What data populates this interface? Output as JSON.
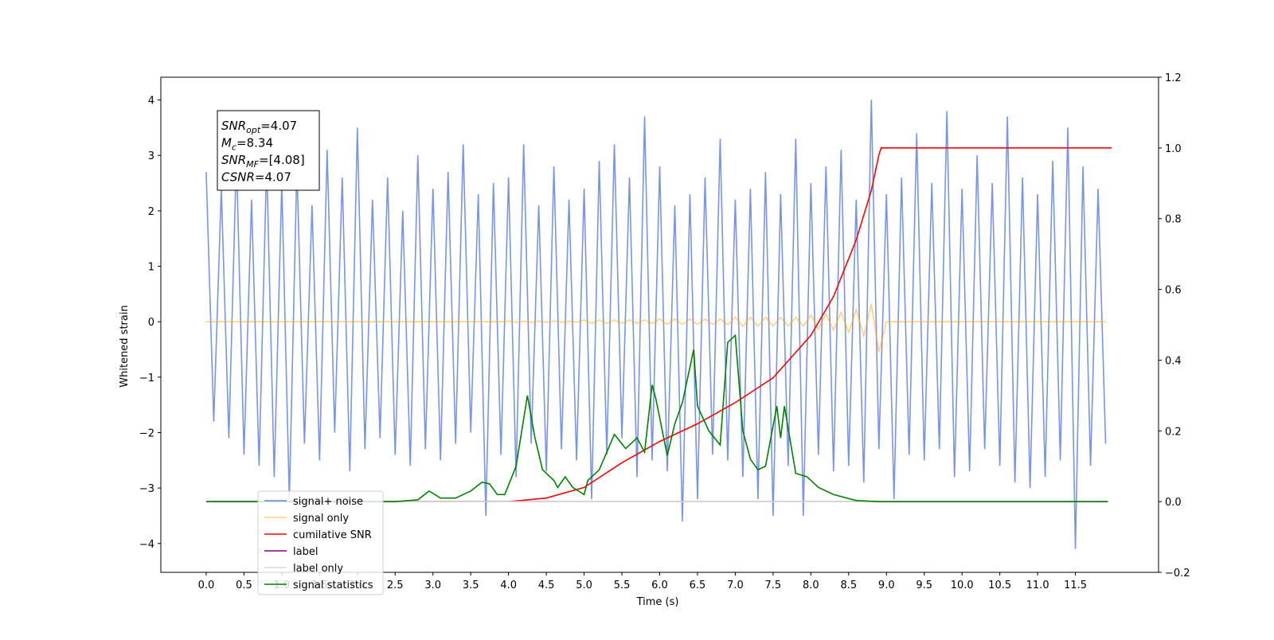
{
  "chart_data": {
    "type": "line",
    "xlabel": "Time (s)",
    "ylabel": "Whitened strain",
    "xlim": [
      -0.6,
      12.6
    ],
    "ylim": [
      -4.52,
      4.41
    ],
    "y2lim": [
      -0.2,
      1.2
    ],
    "xticks": [
      {
        "value": 0,
        "label": "0.0"
      },
      {
        "value": 0.5,
        "label": "0.5"
      },
      {
        "value": 1,
        "label": "1.0"
      },
      {
        "value": 1.5,
        "label": "1.5"
      },
      {
        "value": 2,
        "label": "2.0"
      },
      {
        "value": 2.5,
        "label": "2.5"
      },
      {
        "value": 3,
        "label": "3.0"
      },
      {
        "value": 3.5,
        "label": "3.5"
      },
      {
        "value": 4,
        "label": "4.0"
      },
      {
        "value": 4.5,
        "label": "4.5"
      },
      {
        "value": 5,
        "label": "5.0"
      },
      {
        "value": 5.5,
        "label": "5.5"
      },
      {
        "value": 6,
        "label": "6.0"
      },
      {
        "value": 6.5,
        "label": "6.5"
      },
      {
        "value": 7,
        "label": "7.0"
      },
      {
        "value": 7.5,
        "label": "7.5"
      },
      {
        "value": 8,
        "label": "8.0"
      },
      {
        "value": 8.5,
        "label": "8.5"
      },
      {
        "value": 9,
        "label": "9.0"
      },
      {
        "value": 9.5,
        "label": "9.5"
      },
      {
        "value": 10,
        "label": "10.0"
      },
      {
        "value": 10.5,
        "label": "10.5"
      },
      {
        "value": 11,
        "label": "11.0"
      },
      {
        "value": 11.5,
        "label": "11.5"
      }
    ],
    "yticks": [
      {
        "value": -4,
        "label": "−4"
      },
      {
        "value": -3,
        "label": "−3"
      },
      {
        "value": -2,
        "label": "−2"
      },
      {
        "value": -1,
        "label": "−1"
      },
      0,
      1,
      2,
      3,
      4
    ],
    "y2ticks": [
      {
        "value": -0.2,
        "label": "−0.2"
      },
      {
        "value": 0,
        "label": "0.0"
      },
      0.2,
      0.4,
      0.6,
      0.8,
      {
        "value": 1,
        "label": "1.0"
      },
      1.2
    ],
    "annotation": [
      {
        "base": "SNR",
        "sub": "opt",
        "rest": "=4.07"
      },
      {
        "base": "M",
        "sub": "c",
        "rest": "=8.34"
      },
      {
        "base": "SNR",
        "sub": "MF",
        "rest": "=[4.08]"
      },
      {
        "base": "CSNR",
        "rest": "=4.07"
      }
    ],
    "legend": "lower left",
    "series": [
      {
        "name": "signal+ noise",
        "color": "#6a87e6",
        "axis": "y",
        "x": [
          0,
          0.1,
          0.2,
          0.3,
          0.4,
          0.5,
          0.6,
          0.7,
          0.8,
          0.9,
          1,
          1.1,
          1.2,
          1.3,
          1.4,
          1.5,
          1.6,
          1.7,
          1.8,
          1.9,
          2,
          2.1,
          2.2,
          2.3,
          2.4,
          2.5,
          2.6,
          2.7,
          2.8,
          2.9,
          3,
          3.1,
          3.2,
          3.3,
          3.4,
          3.5,
          3.6,
          3.7,
          3.8,
          3.9,
          4,
          4.1,
          4.2,
          4.3,
          4.4,
          4.5,
          4.6,
          4.7,
          4.8,
          4.9,
          5,
          5.1,
          5.2,
          5.3,
          5.4,
          5.5,
          5.6,
          5.7,
          5.8,
          5.9,
          6,
          6.1,
          6.2,
          6.3,
          6.4,
          6.5,
          6.6,
          6.7,
          6.8,
          6.9,
          7,
          7.1,
          7.2,
          7.3,
          7.4,
          7.5,
          7.6,
          7.7,
          7.8,
          7.9,
          8,
          8.1,
          8.2,
          8.3,
          8.4,
          8.5,
          8.6,
          8.7,
          8.8,
          8.9,
          9,
          9.1,
          9.2,
          9.3,
          9.4,
          9.5,
          9.6,
          9.7,
          9.8,
          9.9,
          10,
          10.1,
          10.2,
          10.3,
          10.4,
          10.5,
          10.6,
          10.7,
          10.8,
          10.9,
          11,
          11.1,
          11.2,
          11.3,
          11.4,
          11.5,
          11.6,
          11.7,
          11.8,
          11.9
        ],
        "values": [
          2.7,
          -1.8,
          2.4,
          -2.1,
          3.0,
          -2.4,
          2.2,
          -2.6,
          2.9,
          -2.8,
          2.5,
          -3.2,
          2.8,
          -2.2,
          2.1,
          -2.5,
          3.1,
          -2.0,
          2.6,
          -2.7,
          3.5,
          -2.3,
          2.2,
          -2.1,
          2.6,
          -2.4,
          2.0,
          -2.6,
          3.0,
          -2.3,
          2.4,
          -2.5,
          2.7,
          -2.2,
          3.2,
          -2.0,
          2.3,
          -3.5,
          2.5,
          -2.4,
          2.6,
          -2.8,
          3.2,
          -2.2,
          2.1,
          -2.7,
          2.8,
          -2.3,
          2.2,
          -2.5,
          2.4,
          -3.2,
          2.9,
          -2.4,
          3.2,
          -2.1,
          2.6,
          -2.8,
          3.7,
          -2.5,
          2.8,
          -2.7,
          2.1,
          -3.6,
          2.3,
          -3.2,
          2.6,
          -2.4,
          3.3,
          -2.5,
          2.2,
          -2.8,
          2.4,
          -3.2,
          2.7,
          -3.5,
          2.3,
          -2.6,
          3.3,
          -3.5,
          2.5,
          -2.4,
          2.8,
          -2.7,
          3.1,
          -2.6,
          2.2,
          -2.9,
          4.0,
          -2.3,
          2.3,
          -3.2,
          2.6,
          -2.4,
          3.4,
          -2.5,
          2.5,
          -2.3,
          3.8,
          -2.8,
          2.4,
          -2.7,
          3.0,
          -2.3,
          2.5,
          -2.6,
          3.7,
          -2.9,
          2.6,
          -3.0,
          2.3,
          -2.8,
          2.9,
          -2.5,
          3.5,
          -4.1,
          2.8,
          -2.6,
          2.4,
          -2.2
        ]
      },
      {
        "name": "signal only",
        "color": "#ffa500",
        "axis": "y",
        "x": [
          0,
          0.1,
          0.2,
          0.3,
          0.4,
          0.5,
          0.6,
          0.7,
          0.8,
          0.9,
          1,
          1.1,
          1.2,
          1.3,
          1.4,
          1.5,
          1.6,
          1.7,
          1.8,
          1.9,
          2,
          2.1,
          2.2,
          2.3,
          2.4,
          2.5,
          2.6,
          2.7,
          2.8,
          2.9,
          3,
          3.1,
          3.2,
          3.3,
          3.4,
          3.5,
          3.6,
          3.7,
          3.8,
          3.9,
          4,
          4.1,
          4.2,
          4.3,
          4.4,
          4.5,
          4.6,
          4.7,
          4.8,
          4.9,
          5,
          5.1,
          5.2,
          5.3,
          5.4,
          5.5,
          5.6,
          5.7,
          5.8,
          5.9,
          6,
          6.1,
          6.2,
          6.3,
          6.4,
          6.5,
          6.6,
          6.7,
          6.8,
          6.9,
          7,
          7.1,
          7.2,
          7.3,
          7.4,
          7.5,
          7.6,
          7.7,
          7.8,
          7.9,
          8,
          8.1,
          8.2,
          8.3,
          8.4,
          8.5,
          8.6,
          8.7,
          8.8,
          8.9,
          9,
          9.1,
          9.2,
          9.3,
          9.4,
          9.5,
          9.6,
          9.7,
          9.8,
          9.9,
          10,
          10.1,
          10.2,
          10.3,
          10.4,
          10.5,
          10.6,
          10.7,
          10.8,
          10.9,
          11,
          11.1,
          11.2,
          11.3,
          11.4,
          11.5,
          11.6,
          11.7,
          11.8,
          11.9
        ],
        "values": [
          0,
          0,
          0,
          0,
          0,
          0,
          0,
          0,
          0,
          0,
          0,
          0,
          0,
          0,
          0,
          0,
          0,
          0,
          0,
          0,
          0,
          0,
          0,
          0,
          0,
          0,
          0,
          0,
          0,
          0,
          0,
          0,
          0,
          0,
          0,
          0,
          0,
          0,
          0,
          0,
          0.01,
          -0.01,
          0.01,
          -0.01,
          0.01,
          -0.01,
          0.01,
          -0.01,
          0.01,
          -0.01,
          0.03,
          -0.03,
          0.03,
          -0.03,
          0.03,
          -0.03,
          0.03,
          -0.03,
          0.03,
          -0.03,
          0.05,
          -0.05,
          0.05,
          -0.05,
          0.05,
          -0.05,
          0.05,
          -0.05,
          0.05,
          -0.05,
          0.08,
          -0.08,
          0.08,
          -0.08,
          0.08,
          -0.08,
          0.08,
          -0.08,
          0.08,
          -0.08,
          0.12,
          -0.13,
          0.14,
          -0.15,
          0.17,
          -0.19,
          0.22,
          -0.26,
          0.32,
          -0.55,
          0,
          0,
          0,
          0,
          0,
          0,
          0,
          0,
          0,
          0,
          0,
          0,
          0,
          0,
          0,
          0,
          0,
          0,
          0,
          0,
          0,
          0,
          0,
          0,
          0,
          0,
          0,
          0,
          0,
          0
        ]
      },
      {
        "name": "cumilative SNR",
        "color": "#ff0000",
        "axis": "y2",
        "x": [
          0,
          4.0,
          4.5,
          5.0,
          5.5,
          6.0,
          6.5,
          7.0,
          7.5,
          8.0,
          8.3,
          8.6,
          8.8,
          8.9,
          8.93,
          11.98
        ],
        "values": [
          0,
          0,
          0.01,
          0.04,
          0.11,
          0.17,
          0.22,
          0.28,
          0.35,
          0.47,
          0.58,
          0.74,
          0.88,
          0.98,
          1.0,
          1.0
        ]
      },
      {
        "name": "label",
        "color": "#800080",
        "axis": "y2",
        "x": [
          0,
          11.93
        ],
        "values": [
          0,
          0
        ]
      },
      {
        "name": "label only",
        "color": "#d8d8d8",
        "axis": "y2",
        "x": [
          0,
          11.93
        ],
        "values": [
          0,
          0
        ]
      },
      {
        "name": "signal statistics",
        "color": "#008000",
        "axis": "y2",
        "x": [
          0,
          2.5,
          2.8,
          2.95,
          3.1,
          3.3,
          3.5,
          3.65,
          3.75,
          3.85,
          3.95,
          4.1,
          4.25,
          4.35,
          4.45,
          4.6,
          4.65,
          4.75,
          4.85,
          5.0,
          5.05,
          5.2,
          5.4,
          5.55,
          5.7,
          5.8,
          5.9,
          5.95,
          6.1,
          6.2,
          6.3,
          6.45,
          6.5,
          6.65,
          6.8,
          6.9,
          7.0,
          7.1,
          7.2,
          7.3,
          7.4,
          7.55,
          7.6,
          7.65,
          7.8,
          7.95,
          8.1,
          8.3,
          8.6,
          8.9,
          11.93
        ],
        "values": [
          0,
          0,
          0.005,
          0.03,
          0.01,
          0.01,
          0.03,
          0.055,
          0.05,
          0.02,
          0.02,
          0.1,
          0.3,
          0.18,
          0.09,
          0.06,
          0.04,
          0.07,
          0.04,
          0.02,
          0.06,
          0.09,
          0.19,
          0.15,
          0.18,
          0.14,
          0.33,
          0.29,
          0.13,
          0.22,
          0.28,
          0.43,
          0.27,
          0.2,
          0.16,
          0.45,
          0.47,
          0.2,
          0.12,
          0.09,
          0.1,
          0.27,
          0.18,
          0.27,
          0.08,
          0.07,
          0.04,
          0.02,
          0.003,
          0,
          0
        ]
      }
    ]
  }
}
